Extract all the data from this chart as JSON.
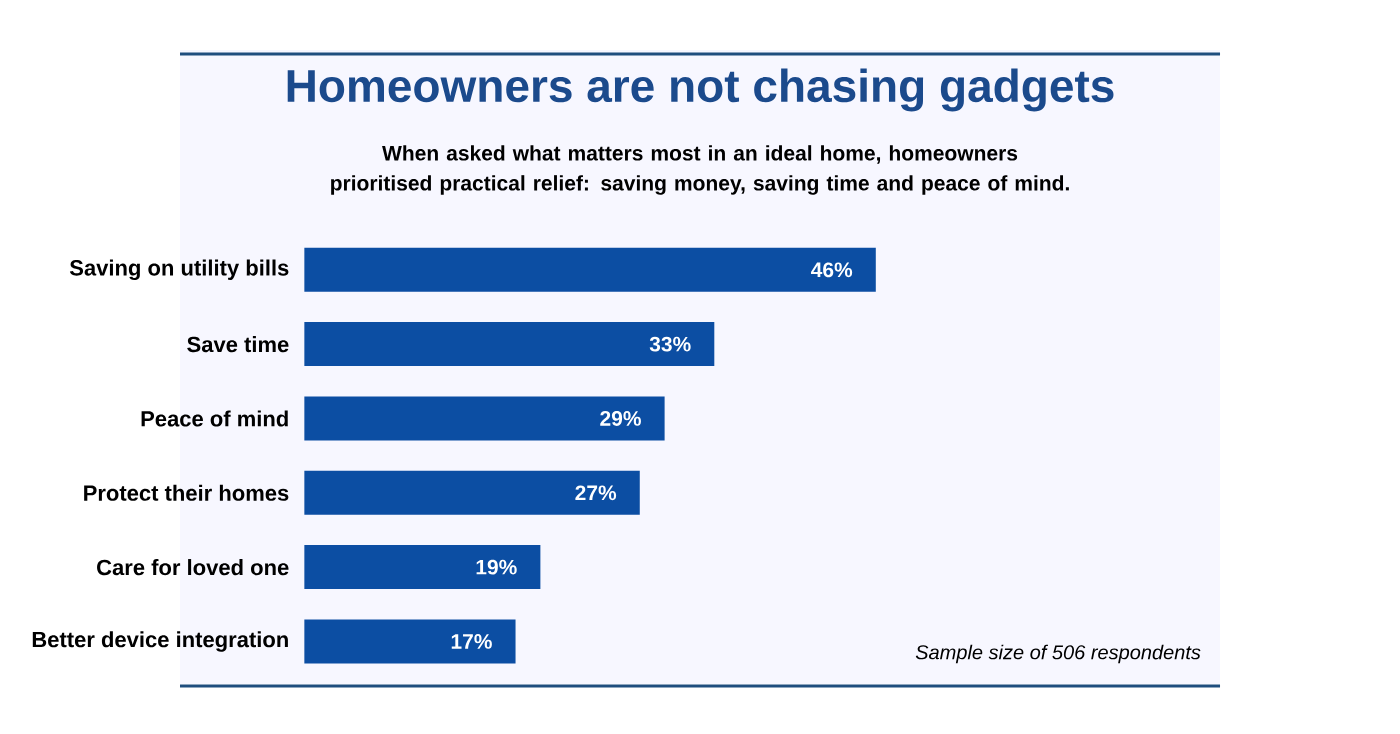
{
  "chart_data": {
    "type": "bar",
    "orientation": "horizontal",
    "title": "Homeowners are not chasing gadgets",
    "subtitle": "When asked what matters most in an ideal home, homeowners prioritised practical relief: saving money, saving time and peace of mind.",
    "categories": [
      "Saving on utility bills",
      "Save time",
      "Peace of mind",
      "Protect their homes",
      "Care for loved one",
      "Better device integration"
    ],
    "values": [
      46,
      33,
      29,
      27,
      19,
      17
    ],
    "value_labels": [
      "46%",
      "33%",
      "29%",
      "27%",
      "19%",
      "17%"
    ],
    "color": "#0c4ea3",
    "annotations": [
      "Sample size of 506 respondents"
    ]
  }
}
